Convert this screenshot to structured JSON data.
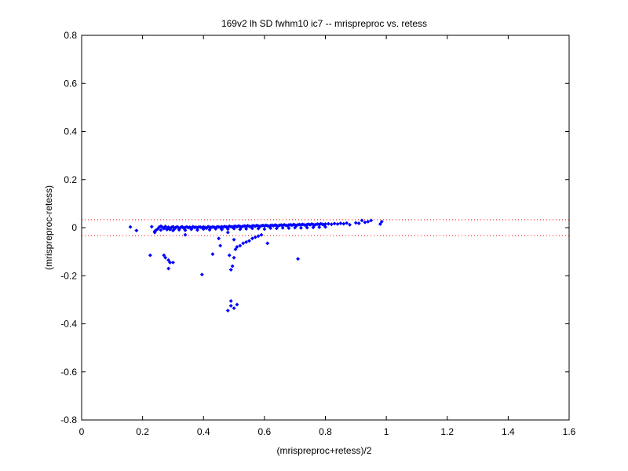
{
  "chart_data": {
    "type": "scatter",
    "title": "169v2 lh SD fwhm10 ic7 -- mrispreproc vs. retess",
    "xlabel": "(mrispreproc+retess)/2",
    "ylabel": "(mrispreproc-retess)",
    "xlim": [
      0,
      1.6
    ],
    "ylim": [
      -0.8,
      0.8
    ],
    "xticks": [
      0,
      0.2,
      0.4,
      0.6,
      0.8,
      1,
      1.2,
      1.4,
      1.6
    ],
    "xtick_labels": [
      "0",
      "0.2",
      "0.4",
      "0.6",
      "0.8",
      "1",
      "1.2",
      "1.4",
      "1.6"
    ],
    "yticks": [
      -0.8,
      -0.6,
      -0.4,
      -0.2,
      0,
      0.2,
      0.4,
      0.6,
      0.8
    ],
    "ytick_labels": [
      "-0.8",
      "-0.6",
      "-0.4",
      "-0.2",
      "0",
      "0.2",
      "0.4",
      "0.6",
      "0.8"
    ],
    "grid": false,
    "marker_color": "#0000ff",
    "reference_line_color": "#ff0000",
    "reference_lines_y": [
      0.033,
      -0.033
    ],
    "series": [
      {
        "x": [
          0.16,
          0.18,
          0.23,
          0.24,
          0.245,
          0.25,
          0.255,
          0.26,
          0.265,
          0.27,
          0.275,
          0.28,
          0.285,
          0.29,
          0.295,
          0.3,
          0.305,
          0.31,
          0.315,
          0.32,
          0.325,
          0.33,
          0.335,
          0.34,
          0.345,
          0.35,
          0.355,
          0.36,
          0.365,
          0.37,
          0.375,
          0.38,
          0.385,
          0.39,
          0.395,
          0.4,
          0.405,
          0.41,
          0.415,
          0.42,
          0.425,
          0.43,
          0.435,
          0.44,
          0.445,
          0.45,
          0.455,
          0.46,
          0.465,
          0.47,
          0.475,
          0.48,
          0.485,
          0.49,
          0.495,
          0.5,
          0.505,
          0.51,
          0.515,
          0.52,
          0.525,
          0.53,
          0.535,
          0.54,
          0.545,
          0.55,
          0.555,
          0.56,
          0.565,
          0.57,
          0.575,
          0.58,
          0.585,
          0.59,
          0.595,
          0.6,
          0.605,
          0.61,
          0.615,
          0.62,
          0.625,
          0.63,
          0.635,
          0.64,
          0.645,
          0.65,
          0.655,
          0.66,
          0.665,
          0.67,
          0.675,
          0.68,
          0.685,
          0.69,
          0.695,
          0.7,
          0.705,
          0.71,
          0.715,
          0.72,
          0.725,
          0.73,
          0.735,
          0.74,
          0.745,
          0.75,
          0.755,
          0.76,
          0.765,
          0.77,
          0.775,
          0.78,
          0.785,
          0.79,
          0.795,
          0.8,
          0.81,
          0.82,
          0.83,
          0.84,
          0.85,
          0.86,
          0.87,
          0.88,
          0.9,
          0.91,
          0.92,
          0.93,
          0.94,
          0.95,
          0.98,
          0.985,
          0.24,
          0.26,
          0.28,
          0.3,
          0.32,
          0.34,
          0.36,
          0.38,
          0.4,
          0.42,
          0.44,
          0.46,
          0.48,
          0.5,
          0.52,
          0.54,
          0.56,
          0.58,
          0.6,
          0.62,
          0.64,
          0.66,
          0.68,
          0.7,
          0.72,
          0.74,
          0.76,
          0.78,
          0.8,
          0.225,
          0.27,
          0.275,
          0.285,
          0.29,
          0.3,
          0.285,
          0.34,
          0.395,
          0.43,
          0.45,
          0.455,
          0.48,
          0.485,
          0.49,
          0.495,
          0.5,
          0.5,
          0.505,
          0.51,
          0.52,
          0.53,
          0.54,
          0.55,
          0.56,
          0.57,
          0.58,
          0.59,
          0.61,
          0.71,
          0.48,
          0.49,
          0.49,
          0.5,
          0.51
        ],
        "y": [
          0.003,
          -0.012,
          0.004,
          -0.02,
          -0.01,
          -0.005,
          0.003,
          0.006,
          0.002,
          -0.004,
          0.005,
          -0.006,
          0.002,
          -0.008,
          0.001,
          0.004,
          -0.005,
          0.002,
          0.003,
          -0.003,
          0.001,
          0.004,
          -0.002,
          0.001,
          0.003,
          0.0,
          0.002,
          -0.002,
          0.004,
          0.001,
          0.002,
          -0.001,
          0.003,
          0.002,
          0.0,
          0.003,
          0.001,
          -0.002,
          0.004,
          0.002,
          0.001,
          0.003,
          0.002,
          -0.001,
          0.004,
          0.003,
          0.001,
          0.004,
          0.002,
          0.005,
          0.003,
          0.002,
          0.006,
          0.004,
          0.003,
          0.005,
          0.006,
          0.004,
          0.007,
          0.005,
          0.003,
          0.006,
          0.007,
          0.005,
          0.008,
          0.006,
          0.004,
          0.007,
          0.008,
          0.006,
          0.009,
          0.007,
          0.005,
          0.008,
          0.009,
          0.007,
          0.01,
          0.008,
          0.006,
          0.009,
          0.01,
          0.008,
          0.011,
          0.009,
          0.007,
          0.01,
          0.011,
          0.009,
          0.012,
          0.01,
          0.008,
          0.011,
          0.012,
          0.01,
          0.013,
          0.011,
          0.009,
          0.012,
          0.013,
          0.011,
          0.014,
          0.012,
          0.01,
          0.013,
          0.014,
          0.012,
          0.015,
          0.013,
          0.011,
          0.014,
          0.015,
          0.013,
          0.016,
          0.014,
          0.012,
          0.015,
          0.016,
          0.014,
          0.017,
          0.015,
          0.018,
          0.016,
          0.019,
          0.012,
          0.02,
          0.018,
          0.03,
          0.022,
          0.025,
          0.03,
          0.015,
          0.025,
          -0.015,
          -0.01,
          -0.008,
          -0.012,
          -0.009,
          -0.011,
          -0.007,
          -0.01,
          -0.006,
          -0.009,
          -0.005,
          -0.008,
          -0.006,
          -0.004,
          -0.007,
          -0.005,
          -0.003,
          -0.004,
          -0.006,
          -0.002,
          -0.003,
          -0.001,
          -0.002,
          0.0,
          -0.001,
          0.0,
          0.001,
          0.002,
          0.003,
          -0.115,
          -0.115,
          -0.125,
          -0.135,
          -0.145,
          -0.145,
          -0.17,
          -0.03,
          -0.195,
          -0.11,
          -0.045,
          -0.075,
          -0.02,
          -0.115,
          -0.175,
          -0.16,
          -0.05,
          -0.125,
          -0.09,
          -0.08,
          -0.075,
          -0.065,
          -0.06,
          -0.055,
          -0.045,
          -0.04,
          -0.035,
          -0.03,
          -0.065,
          -0.13,
          -0.345,
          -0.305,
          -0.325,
          -0.335,
          -0.32
        ]
      }
    ]
  }
}
